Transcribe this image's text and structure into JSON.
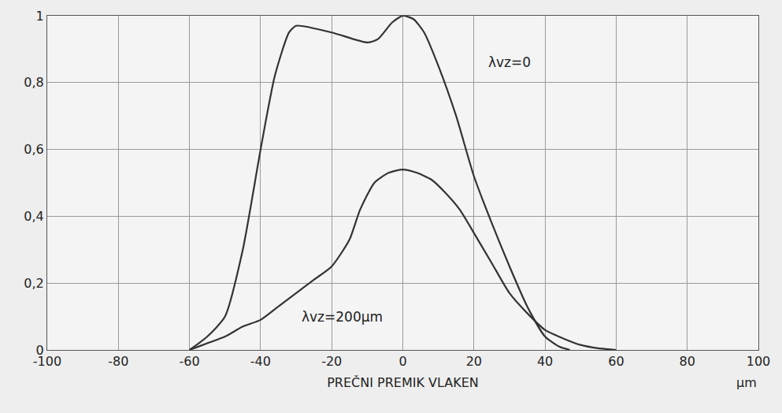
{
  "chart_data": {
    "type": "line",
    "xlabel": "PREČNI PREMIK VLAKEN",
    "x_unit_label": "μm",
    "xlim": [
      -100,
      100
    ],
    "xticks": [
      -100,
      -80,
      -60,
      -40,
      -20,
      0,
      20,
      40,
      60,
      80,
      100
    ],
    "ylim": [
      0,
      1
    ],
    "yticks": [
      0,
      {
        "value": 0.2,
        "label": "0,2"
      },
      {
        "value": 0.4,
        "label": "0,4"
      },
      {
        "value": 0.6,
        "label": "0,6"
      },
      {
        "value": 0.8,
        "label": "0,8"
      },
      1
    ],
    "grid": true,
    "series": [
      {
        "color": "#333333",
        "x": [
          -60,
          -55,
          -50,
          -45,
          -40,
          -36,
          -32,
          -30,
          -20,
          -10,
          -7,
          -3,
          0,
          3,
          6,
          10,
          15,
          20,
          25,
          30,
          35,
          40,
          44,
          47
        ],
        "values": [
          0,
          0.04,
          0.1,
          0.3,
          0.6,
          0.82,
          0.95,
          0.97,
          0.95,
          0.92,
          0.93,
          0.98,
          1.0,
          0.99,
          0.95,
          0.85,
          0.7,
          0.52,
          0.38,
          0.25,
          0.13,
          0.04,
          0.01,
          0
        ]
      },
      {
        "color": "#333333",
        "x": [
          -60,
          -55,
          -50,
          -45,
          -40,
          -35,
          -30,
          -25,
          -20,
          -15,
          -12,
          -8,
          -4,
          0,
          4,
          8,
          12,
          16,
          20,
          25,
          30,
          35,
          40,
          45,
          50,
          55,
          60
        ],
        "values": [
          0,
          0.02,
          0.04,
          0.07,
          0.09,
          0.13,
          0.17,
          0.21,
          0.25,
          0.33,
          0.42,
          0.5,
          0.53,
          0.54,
          0.53,
          0.51,
          0.47,
          0.42,
          0.35,
          0.26,
          0.17,
          0.11,
          0.06,
          0.035,
          0.015,
          0.005,
          0
        ]
      }
    ],
    "annotations": [
      {
        "text": "λvz=0",
        "x": 30,
        "y": 0.86
      },
      {
        "text": "λvz=200μm",
        "x": -17,
        "y": 0.1
      }
    ]
  }
}
